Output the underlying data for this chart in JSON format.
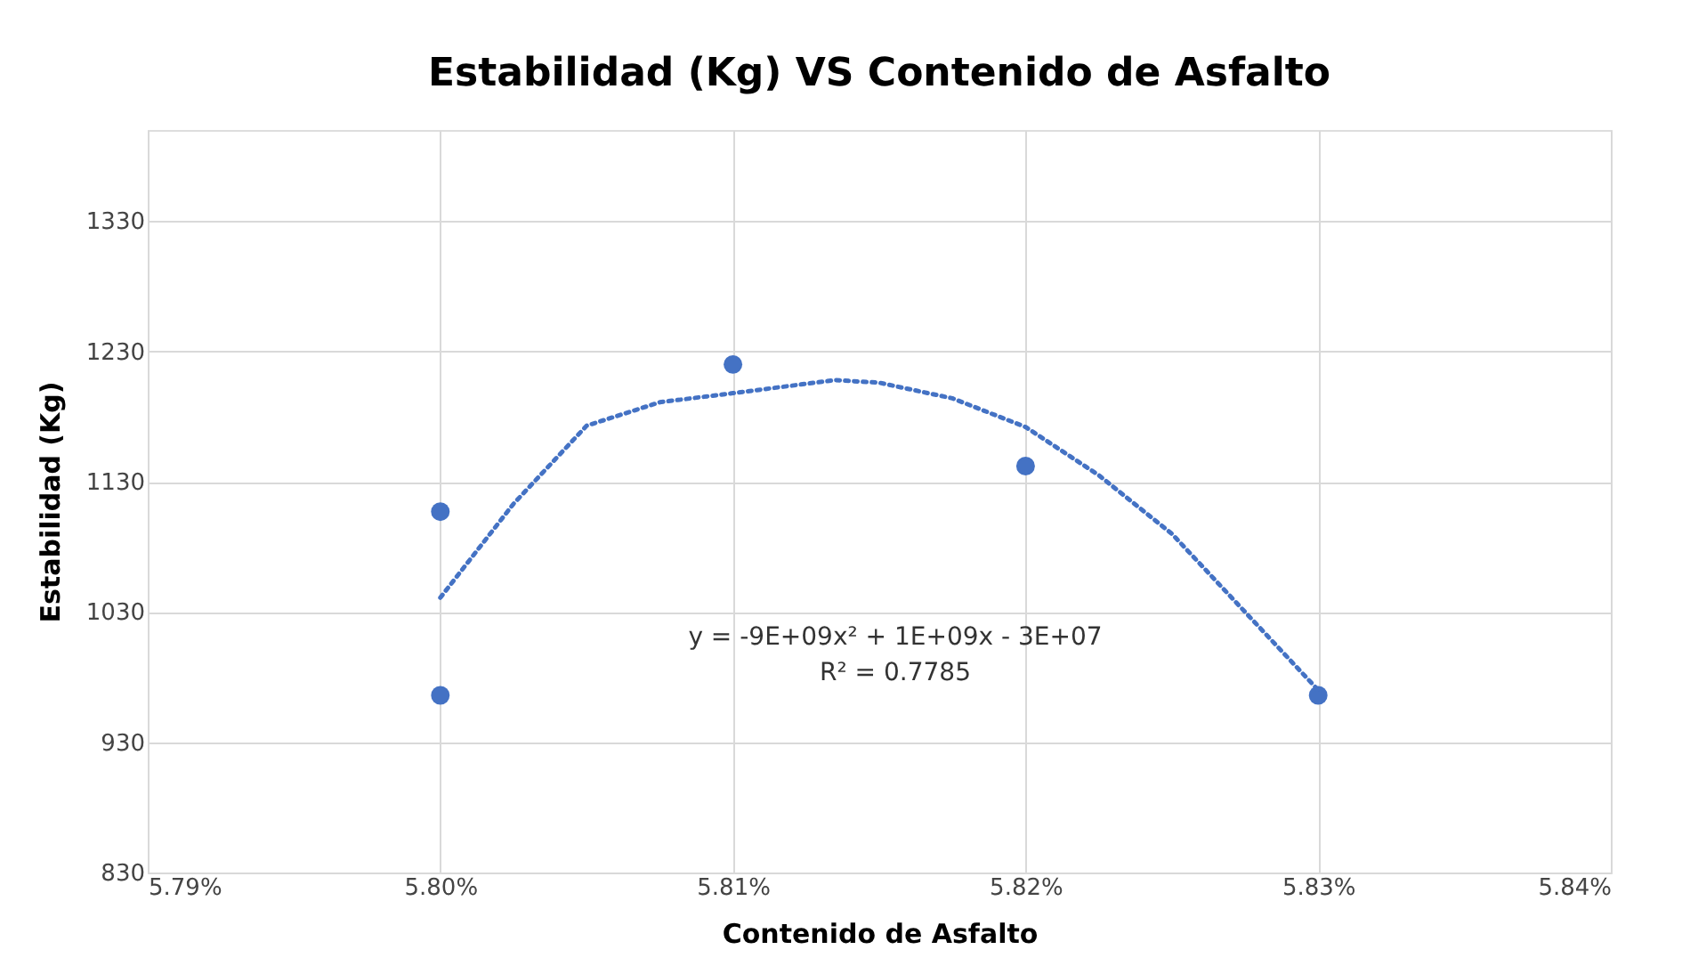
{
  "chart_data": {
    "type": "scatter",
    "title": "Estabilidad (Kg) VS Contenido de Asfalto",
    "xlabel": "Contenido de Asfalto",
    "ylabel": "Estabilidad (Kg)",
    "series": [
      {
        "type": "scatter",
        "color": "#4472c4",
        "marker": "circle",
        "x": [
          5.8,
          5.8,
          5.81,
          5.82,
          5.83
        ],
        "values": [
          1107,
          966,
          1220,
          1142,
          966
        ]
      },
      {
        "type": "line",
        "color": "#4472c4",
        "line_style": "dotted",
        "marker": "none",
        "x": [
          5.8,
          5.8025,
          5.805,
          5.8075,
          5.81,
          5.8135,
          5.815,
          5.8175,
          5.82,
          5.8225,
          5.825,
          5.83
        ],
        "values": [
          1041,
          1113,
          1173,
          1191,
          1198,
          1208,
          1206,
          1194,
          1172,
          1135,
          1090,
          970
        ]
      }
    ],
    "annotations": [
      "y = -9E+09x² + 1E+09x - 3E+07",
      "R² = 0.7785"
    ],
    "xlim": [
      5.79,
      5.84
    ],
    "xticks": [
      {
        "value": 5.79,
        "label": "5.79%"
      },
      {
        "value": 5.8,
        "label": "5.80%"
      },
      {
        "value": 5.81,
        "label": "5.81%"
      },
      {
        "value": 5.82,
        "label": "5.82%"
      },
      {
        "value": 5.83,
        "label": "5.83%"
      },
      {
        "value": 5.84,
        "label": "5.84%"
      }
    ],
    "ylim": [
      830,
      1400
    ],
    "yticks": [
      830,
      930,
      1030,
      1130,
      1230,
      1330
    ],
    "grid": true
  }
}
